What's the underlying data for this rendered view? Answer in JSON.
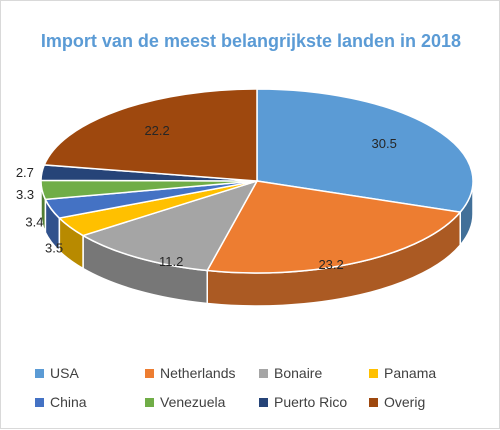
{
  "chart_data": {
    "type": "pie",
    "title": "Import van de meest belangrijkste landen in 2018",
    "categories": [
      "USA",
      "Netherlands",
      "Bonaire",
      "Panama",
      "China",
      "Venezuela",
      "Puerto Rico",
      "Overig"
    ],
    "values": [
      30.5,
      23.2,
      11.2,
      3.5,
      3.4,
      3.3,
      2.7,
      22.2
    ],
    "colors": [
      "#5b9bd5",
      "#ed7d31",
      "#a5a5a5",
      "#ffc000",
      "#4472c4",
      "#70ad47",
      "#264478",
      "#9e480e"
    ],
    "legend_position": "bottom",
    "style": "3d"
  }
}
